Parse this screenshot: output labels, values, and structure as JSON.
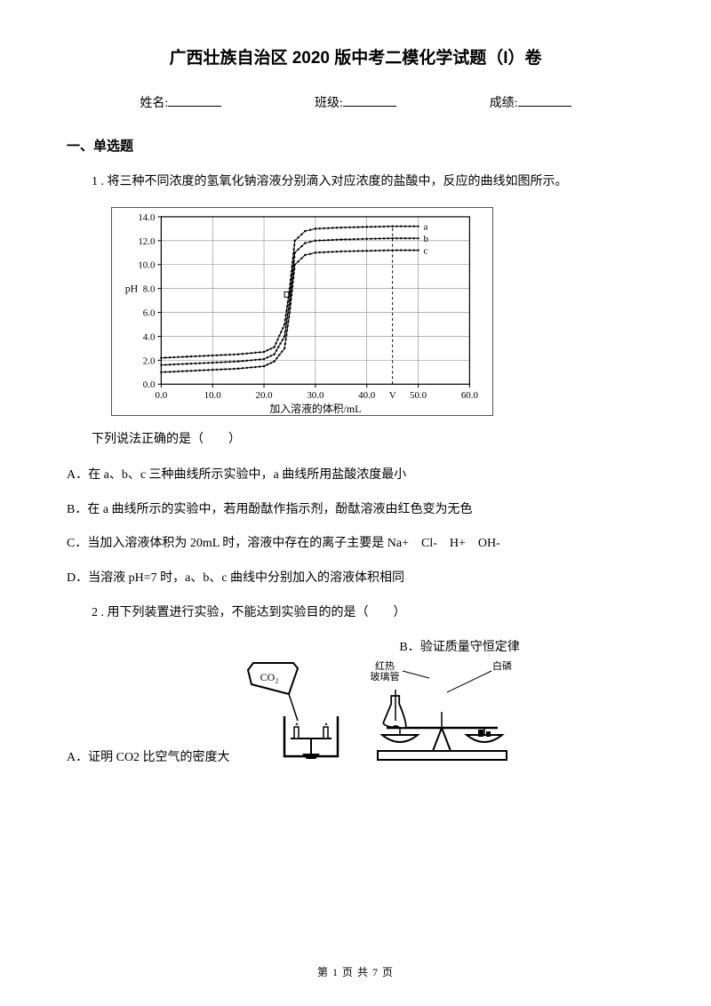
{
  "title": "广西壮族自治区 2020 版中考二模化学试题（I）卷",
  "info": {
    "name_label": "姓名:",
    "class_label": "班级:",
    "score_label": "成绩:"
  },
  "section1": "一、单选题",
  "q1": {
    "stem": "1 . 将三种不同浓度的氢氧化钠溶液分别滴入对应浓度的盐酸中，反应的曲线如图所示。",
    "after": "下列说法正确的是（　　）",
    "optA": "A．在 a、b、c 三种曲线所示实验中，a 曲线所用盐酸浓度最小",
    "optB": "B．在 a 曲线所示的实验中，若用酚酞作指示剂，酚酞溶液由红色变为无色",
    "optC": "C．当加入溶液体积为 20mL 时，溶液中存在的离子主要是 Na+　Cl-　H+　OH-",
    "optD": "D．当溶液 pH=7 时，a、b、c 曲线中分别加入的溶液体积相同"
  },
  "chart": {
    "type": "line",
    "ylabel": "pH",
    "xlabel": "加入溶液的体积/mL",
    "xlim": [
      0,
      60
    ],
    "xtick_step": 10,
    "ylim": [
      0,
      14
    ],
    "ytick_step": 2,
    "yticks": [
      "0.0",
      "2.0",
      "4.0",
      "6.0",
      "8.0",
      "10.0",
      "12.0",
      "14.0"
    ],
    "xticks": [
      "0.0",
      "10.0",
      "20.0",
      "30.0",
      "40.0",
      "50.0",
      "60.0"
    ],
    "grid_color": "#888888",
    "axis_color": "#000000",
    "series": [
      {
        "label": "a",
        "marker": "dot",
        "points": [
          [
            0,
            2.2
          ],
          [
            5,
            2.3
          ],
          [
            10,
            2.4
          ],
          [
            15,
            2.5
          ],
          [
            20,
            2.7
          ],
          [
            22,
            3.1
          ],
          [
            24,
            5.0
          ],
          [
            25,
            8.0
          ],
          [
            26,
            12.0
          ],
          [
            28,
            12.8
          ],
          [
            30,
            13.0
          ],
          [
            35,
            13.1
          ],
          [
            40,
            13.15
          ],
          [
            45,
            13.2
          ],
          [
            50,
            13.2
          ]
        ]
      },
      {
        "label": "b",
        "marker": "dot",
        "points": [
          [
            0,
            1.6
          ],
          [
            5,
            1.7
          ],
          [
            10,
            1.8
          ],
          [
            15,
            1.9
          ],
          [
            20,
            2.1
          ],
          [
            22,
            2.5
          ],
          [
            24,
            4.0
          ],
          [
            25,
            7.0
          ],
          [
            26,
            11.0
          ],
          [
            28,
            11.8
          ],
          [
            30,
            12.0
          ],
          [
            35,
            12.1
          ],
          [
            40,
            12.15
          ],
          [
            45,
            12.2
          ],
          [
            50,
            12.2
          ]
        ]
      },
      {
        "label": "c",
        "marker": "dot",
        "points": [
          [
            0,
            1.0
          ],
          [
            5,
            1.1
          ],
          [
            10,
            1.2
          ],
          [
            15,
            1.3
          ],
          [
            20,
            1.5
          ],
          [
            22,
            1.9
          ],
          [
            24,
            3.0
          ],
          [
            25,
            6.0
          ],
          [
            26,
            10.0
          ],
          [
            28,
            10.8
          ],
          [
            30,
            11.0
          ],
          [
            35,
            11.1
          ],
          [
            40,
            11.15
          ],
          [
            45,
            11.2
          ],
          [
            50,
            11.2
          ]
        ]
      }
    ],
    "vdash_x": 45,
    "vdash_label": "V",
    "hdash_y": 7,
    "line_color": "#000000",
    "bg": "#ffffff",
    "font_size": 11
  },
  "q2": {
    "stem": "2 . 用下列装置进行实验，不能达到实验目的的是（　　）",
    "optA": "A．证明 CO2 比空气的密度大",
    "optB": "B．验证质量守恒定律",
    "figA": {
      "co2_label": "CO₂"
    },
    "figB": {
      "tube_label": "红热\n玻璃管",
      "p_label": "白磷"
    }
  },
  "footer": "第 1 页 共 7 页"
}
